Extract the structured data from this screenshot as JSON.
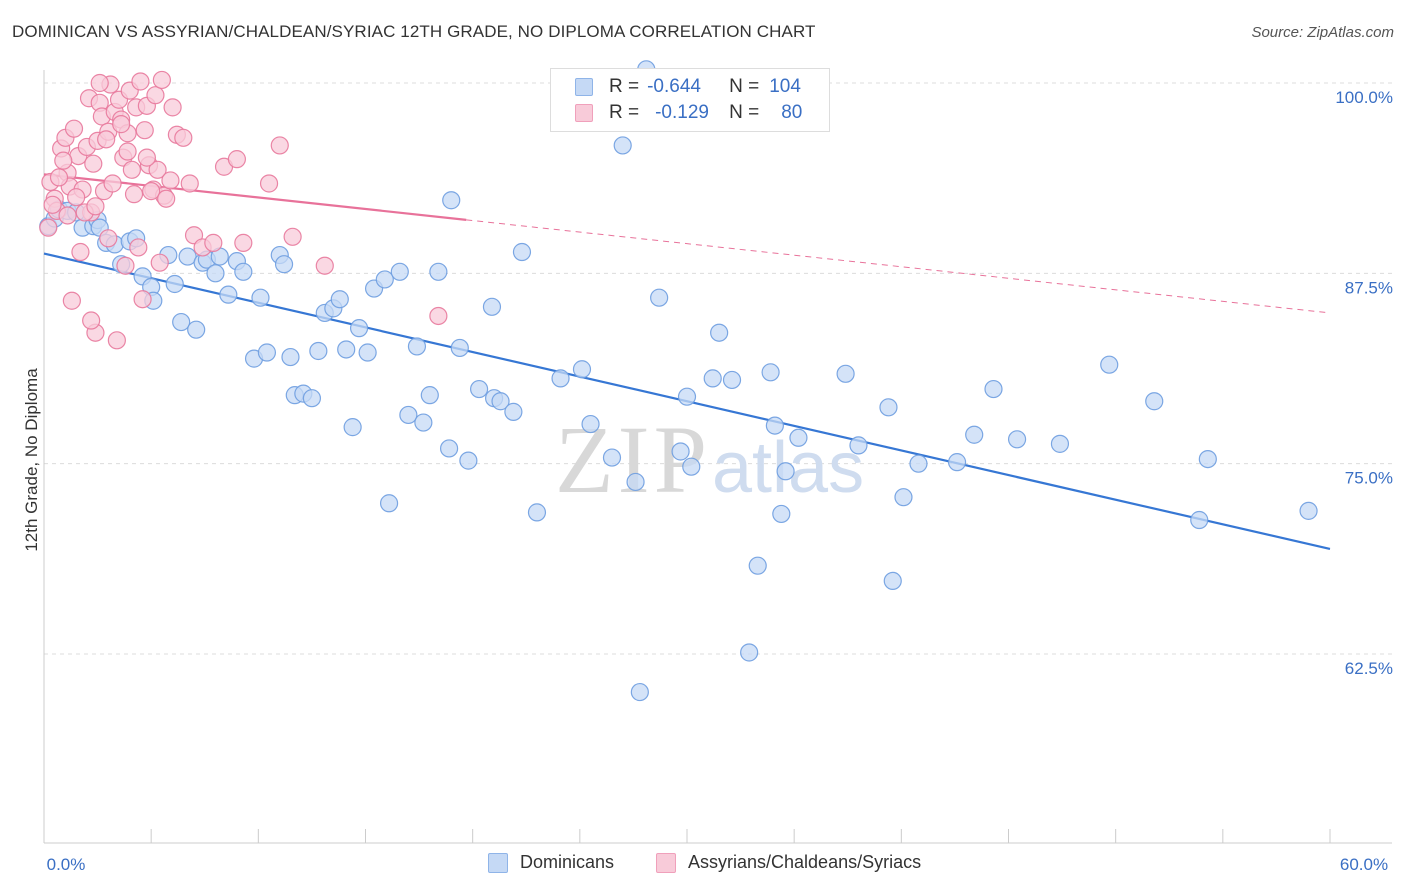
{
  "header": {
    "title": "DOMINICAN VS ASSYRIAN/CHALDEAN/SYRIAC 12TH GRADE, NO DIPLOMA CORRELATION CHART",
    "source": "Source: ZipAtlas.com"
  },
  "watermark": {
    "zip": "ZIP",
    "atlas": "atlas"
  },
  "legend": {
    "rows": [
      {
        "r_label": "R =",
        "r_value": "-0.644",
        "n_label": "N =",
        "n_value": "104",
        "color": "#8fb4e8",
        "fill": "#c5d9f5"
      },
      {
        "r_label": "R =",
        "r_value": "-0.129",
        "n_label": "N =",
        "n_value": "80",
        "color": "#f0a0bb",
        "fill": "#f8cbd9"
      }
    ]
  },
  "bottom_legend": {
    "items": [
      {
        "label": "Dominicans",
        "color": "#8fb4e8",
        "fill": "#c5d9f5"
      },
      {
        "label": "Assyrians/Chaldeans/Syriacs",
        "color": "#f0a0bb",
        "fill": "#f8cbd9"
      }
    ]
  },
  "chart_data": {
    "type": "scatter",
    "title": "DOMINICAN VS ASSYRIAN/CHALDEAN/SYRIAC 12TH GRADE, NO DIPLOMA CORRELATION CHART",
    "ylabel": "12th Grade, No Diploma",
    "xlabel": "",
    "xlim": [
      0,
      60
    ],
    "ylim": [
      50,
      101.5
    ],
    "x_tick_labels": [
      {
        "value": 0,
        "label": "0.0%"
      },
      {
        "value": 60,
        "label": "60.0%"
      }
    ],
    "y_tick_labels": [
      {
        "value": 100,
        "label": "100.0%"
      },
      {
        "value": 87.5,
        "label": "87.5%"
      },
      {
        "value": 75,
        "label": "75.0%"
      },
      {
        "value": 62.5,
        "label": "62.5%"
      }
    ],
    "grid": true,
    "legend_position": "top-center",
    "series": [
      {
        "name": "Dominicans",
        "color": "#6e9de0",
        "fill": "#c5d9f5",
        "trend": {
          "x": [
            0,
            60
          ],
          "y": [
            88.8,
            69.4
          ],
          "dashed_from": null
        },
        "points": [
          [
            0.2,
            90.6
          ],
          [
            0.5,
            91.1
          ],
          [
            0.7,
            91.7
          ],
          [
            1.1,
            91.6
          ],
          [
            1.5,
            91.5
          ],
          [
            1.8,
            90.5
          ],
          [
            2.3,
            90.6
          ],
          [
            2.5,
            91.0
          ],
          [
            2.6,
            90.5
          ],
          [
            2.9,
            89.5
          ],
          [
            3.3,
            89.4
          ],
          [
            3.6,
            88.1
          ],
          [
            4.0,
            89.6
          ],
          [
            4.3,
            89.8
          ],
          [
            4.6,
            87.3
          ],
          [
            5.0,
            86.6
          ],
          [
            5.1,
            85.7
          ],
          [
            5.8,
            88.7
          ],
          [
            6.1,
            86.8
          ],
          [
            6.4,
            84.3
          ],
          [
            6.7,
            88.6
          ],
          [
            7.1,
            83.8
          ],
          [
            7.4,
            88.2
          ],
          [
            7.6,
            88.4
          ],
          [
            8.0,
            87.5
          ],
          [
            8.2,
            88.6
          ],
          [
            8.6,
            86.1
          ],
          [
            9.0,
            88.3
          ],
          [
            9.3,
            87.6
          ],
          [
            9.8,
            81.9
          ],
          [
            10.1,
            85.9
          ],
          [
            10.4,
            82.3
          ],
          [
            11.0,
            88.7
          ],
          [
            11.2,
            88.1
          ],
          [
            11.5,
            82.0
          ],
          [
            11.7,
            79.5
          ],
          [
            12.1,
            79.6
          ],
          [
            12.5,
            79.3
          ],
          [
            12.8,
            82.4
          ],
          [
            13.1,
            84.9
          ],
          [
            13.5,
            85.2
          ],
          [
            13.8,
            85.8
          ],
          [
            14.1,
            82.5
          ],
          [
            14.4,
            77.4
          ],
          [
            14.7,
            83.9
          ],
          [
            15.1,
            82.3
          ],
          [
            15.4,
            86.5
          ],
          [
            15.9,
            87.1
          ],
          [
            16.1,
            72.4
          ],
          [
            16.6,
            87.6
          ],
          [
            17.0,
            78.2
          ],
          [
            17.4,
            82.7
          ],
          [
            17.7,
            77.7
          ],
          [
            18.0,
            79.5
          ],
          [
            18.4,
            87.6
          ],
          [
            18.9,
            76.0
          ],
          [
            19.0,
            92.3
          ],
          [
            19.4,
            82.6
          ],
          [
            19.8,
            75.2
          ],
          [
            20.3,
            79.9
          ],
          [
            20.9,
            85.3
          ],
          [
            21.0,
            79.3
          ],
          [
            21.3,
            79.1
          ],
          [
            21.9,
            78.4
          ],
          [
            22.3,
            88.9
          ],
          [
            23.0,
            71.8
          ],
          [
            24.1,
            80.6
          ],
          [
            25.1,
            81.2
          ],
          [
            25.5,
            77.6
          ],
          [
            26.5,
            75.4
          ],
          [
            27.0,
            95.9
          ],
          [
            27.6,
            73.8
          ],
          [
            27.8,
            60.0
          ],
          [
            28.7,
            85.9
          ],
          [
            29.7,
            75.8
          ],
          [
            30.0,
            79.4
          ],
          [
            30.2,
            74.8
          ],
          [
            31.2,
            80.6
          ],
          [
            31.5,
            83.6
          ],
          [
            32.1,
            80.5
          ],
          [
            32.9,
            62.6
          ],
          [
            33.3,
            68.3
          ],
          [
            33.9,
            81.0
          ],
          [
            34.1,
            77.5
          ],
          [
            34.4,
            71.7
          ],
          [
            34.6,
            74.5
          ],
          [
            35.2,
            76.7
          ],
          [
            37.4,
            80.9
          ],
          [
            38.0,
            76.2
          ],
          [
            39.4,
            78.7
          ],
          [
            39.6,
            67.3
          ],
          [
            40.1,
            72.8
          ],
          [
            40.8,
            75.0
          ],
          [
            42.6,
            75.1
          ],
          [
            43.4,
            76.9
          ],
          [
            44.3,
            79.9
          ],
          [
            45.4,
            76.6
          ],
          [
            47.4,
            76.3
          ],
          [
            49.7,
            81.5
          ],
          [
            51.8,
            79.1
          ],
          [
            53.9,
            71.3
          ],
          [
            54.3,
            75.3
          ],
          [
            59.0,
            71.9
          ],
          [
            28.1,
            100.9
          ]
        ]
      },
      {
        "name": "Assyrians/Chaldeans/Syriacs",
        "color": "#e8799c",
        "fill": "#f8cbd9",
        "trend": {
          "x": [
            0,
            60
          ],
          "y": [
            94.0,
            84.9
          ],
          "solid_until": 19.7
        },
        "points": [
          [
            0.3,
            93.5
          ],
          [
            0.5,
            92.4
          ],
          [
            0.6,
            91.6
          ],
          [
            0.8,
            95.7
          ],
          [
            1.0,
            96.4
          ],
          [
            1.1,
            94.1
          ],
          [
            1.2,
            93.2
          ],
          [
            1.4,
            97.0
          ],
          [
            1.6,
            95.2
          ],
          [
            1.7,
            88.9
          ],
          [
            1.8,
            93.0
          ],
          [
            2.0,
            95.8
          ],
          [
            2.1,
            99.0
          ],
          [
            2.2,
            91.5
          ],
          [
            2.3,
            94.7
          ],
          [
            2.4,
            83.6
          ],
          [
            2.5,
            96.2
          ],
          [
            2.6,
            98.7
          ],
          [
            2.7,
            97.8
          ],
          [
            2.8,
            92.9
          ],
          [
            3.0,
            96.8
          ],
          [
            3.1,
            99.9
          ],
          [
            3.2,
            93.4
          ],
          [
            3.3,
            98.1
          ],
          [
            3.4,
            83.1
          ],
          [
            3.5,
            98.9
          ],
          [
            3.6,
            97.6
          ],
          [
            3.7,
            95.1
          ],
          [
            3.8,
            88.0
          ],
          [
            3.9,
            96.7
          ],
          [
            4.0,
            99.5
          ],
          [
            4.1,
            94.3
          ],
          [
            4.2,
            92.7
          ],
          [
            4.3,
            98.4
          ],
          [
            4.4,
            89.2
          ],
          [
            4.5,
            100.1
          ],
          [
            4.6,
            85.8
          ],
          [
            4.7,
            96.9
          ],
          [
            4.8,
            98.5
          ],
          [
            4.9,
            94.6
          ],
          [
            5.1,
            93.0
          ],
          [
            5.2,
            99.2
          ],
          [
            5.3,
            94.3
          ],
          [
            5.4,
            88.2
          ],
          [
            5.6,
            92.6
          ],
          [
            5.9,
            93.6
          ],
          [
            6.2,
            96.6
          ],
          [
            6.5,
            96.4
          ],
          [
            7.0,
            90.0
          ],
          [
            7.4,
            89.2
          ],
          [
            8.4,
            94.5
          ],
          [
            9.0,
            95.0
          ],
          [
            9.3,
            89.5
          ],
          [
            10.5,
            93.4
          ],
          [
            11.0,
            95.9
          ],
          [
            11.6,
            89.9
          ],
          [
            13.1,
            88.0
          ],
          [
            18.4,
            84.7
          ],
          [
            1.3,
            85.7
          ],
          [
            0.4,
            92.0
          ],
          [
            0.7,
            93.8
          ],
          [
            1.9,
            91.5
          ],
          [
            2.9,
            96.3
          ],
          [
            3.9,
            95.5
          ],
          [
            5.0,
            92.9
          ],
          [
            5.7,
            92.4
          ],
          [
            6.8,
            93.4
          ],
          [
            2.2,
            84.4
          ],
          [
            1.5,
            92.5
          ],
          [
            0.9,
            94.9
          ],
          [
            2.6,
            100.0
          ],
          [
            3.6,
            97.3
          ],
          [
            4.8,
            95.1
          ],
          [
            6.0,
            98.4
          ],
          [
            7.9,
            89.5
          ],
          [
            0.2,
            90.5
          ],
          [
            3.0,
            89.8
          ],
          [
            1.1,
            91.3
          ],
          [
            2.4,
            91.9
          ],
          [
            5.5,
            100.2
          ]
        ]
      }
    ]
  }
}
